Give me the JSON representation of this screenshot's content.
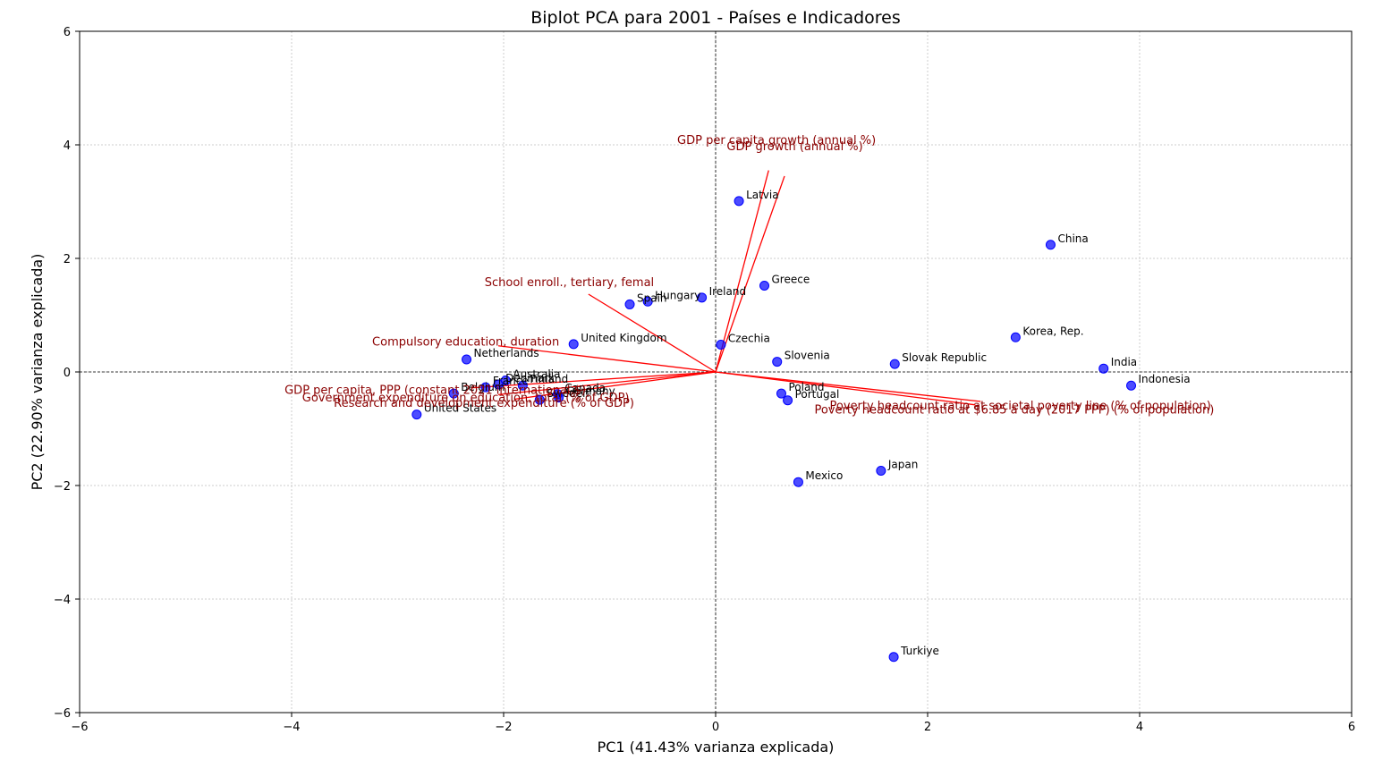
{
  "chart_data": {
    "type": "scatter",
    "title": "Biplot PCA para 2001 - Países e Indicadores",
    "xlabel": "PC1 (41.43% varianza explicada)",
    "ylabel": "PC2 (22.90% varianza explicada)",
    "xlim": [
      -6,
      6
    ],
    "ylim": [
      -6,
      6
    ],
    "xticks": [
      -6,
      -4,
      -2,
      0,
      2,
      4,
      6
    ],
    "yticks": [
      -6,
      -4,
      -2,
      0,
      2,
      4,
      6
    ],
    "grid": true,
    "point_color": "#0000ff",
    "arrow_color": "#ff0000",
    "arrow_label_color": "#8b0000",
    "points": [
      {
        "label": "Latvia",
        "x": 0.22,
        "y": 3.01
      },
      {
        "label": "China",
        "x": 3.16,
        "y": 2.24
      },
      {
        "label": "Greece",
        "x": 0.46,
        "y": 1.52
      },
      {
        "label": "Ireland",
        "x": -0.13,
        "y": 1.31
      },
      {
        "label": "Hungary",
        "x": -0.64,
        "y": 1.24
      },
      {
        "label": "Spain",
        "x": -0.81,
        "y": 1.19
      },
      {
        "label": "Korea, Rep.",
        "x": 2.83,
        "y": 0.61
      },
      {
        "label": "Czechia",
        "x": 0.05,
        "y": 0.48
      },
      {
        "label": "United Kingdom",
        "x": -1.34,
        "y": 0.49
      },
      {
        "label": "Netherlands",
        "x": -2.35,
        "y": 0.22
      },
      {
        "label": "Slovenia",
        "x": 0.58,
        "y": 0.18
      },
      {
        "label": "Slovak Republic",
        "x": 1.69,
        "y": 0.14
      },
      {
        "label": "India",
        "x": 3.66,
        "y": 0.06
      },
      {
        "label": "Indonesia",
        "x": 3.92,
        "y": -0.24
      },
      {
        "label": "Australia",
        "x": -1.98,
        "y": -0.15
      },
      {
        "label": "Denmark",
        "x": -2.05,
        "y": -0.22
      },
      {
        "label": "Finland",
        "x": -1.82,
        "y": -0.24
      },
      {
        "label": "France",
        "x": -2.17,
        "y": -0.27
      },
      {
        "label": "Belgium",
        "x": -2.47,
        "y": -0.38
      },
      {
        "label": "Canada",
        "x": -1.49,
        "y": -0.39
      },
      {
        "label": "Sweden",
        "x": -1.66,
        "y": -0.49
      },
      {
        "label": "Germany",
        "x": -1.48,
        "y": -0.45
      },
      {
        "label": "Poland",
        "x": 0.62,
        "y": -0.38
      },
      {
        "label": "Portugal",
        "x": 0.68,
        "y": -0.5
      },
      {
        "label": "United States",
        "x": -2.82,
        "y": -0.75
      },
      {
        "label": "Japan",
        "x": 1.56,
        "y": -1.74
      },
      {
        "label": "Mexico",
        "x": 0.78,
        "y": -1.94
      },
      {
        "label": "Turkiye",
        "x": 1.68,
        "y": -5.02
      }
    ],
    "loadings": [
      {
        "label": "GDP per capita growth (annual %)",
        "x": 0.5,
        "y": 3.55
      },
      {
        "label": "GDP growth (annual %)",
        "x": 0.65,
        "y": 3.45
      },
      {
        "label": "School enroll., tertiary, femal",
        "x": -1.2,
        "y": 1.37
      },
      {
        "label": "Compulsory education, duration",
        "x": -2.05,
        "y": 0.46
      },
      {
        "label": "GDP per capita, PPP (constant 2021 international $)",
        "x": -2.3,
        "y": -0.28
      },
      {
        "label": "Government expenditure on education, total (% of GDP)",
        "x": -2.05,
        "y": -0.4
      },
      {
        "label": "Research and development expenditure (% of GDP)",
        "x": -1.9,
        "y": -0.48
      },
      {
        "label": "Poverty headcount ratio at societal poverty line (% of population)",
        "x": 2.5,
        "y": -0.52
      },
      {
        "label": "Poverty headcount ratio at $6.85 a day (2017 PPP) (% of population)",
        "x": 2.45,
        "y": -0.58
      }
    ]
  }
}
